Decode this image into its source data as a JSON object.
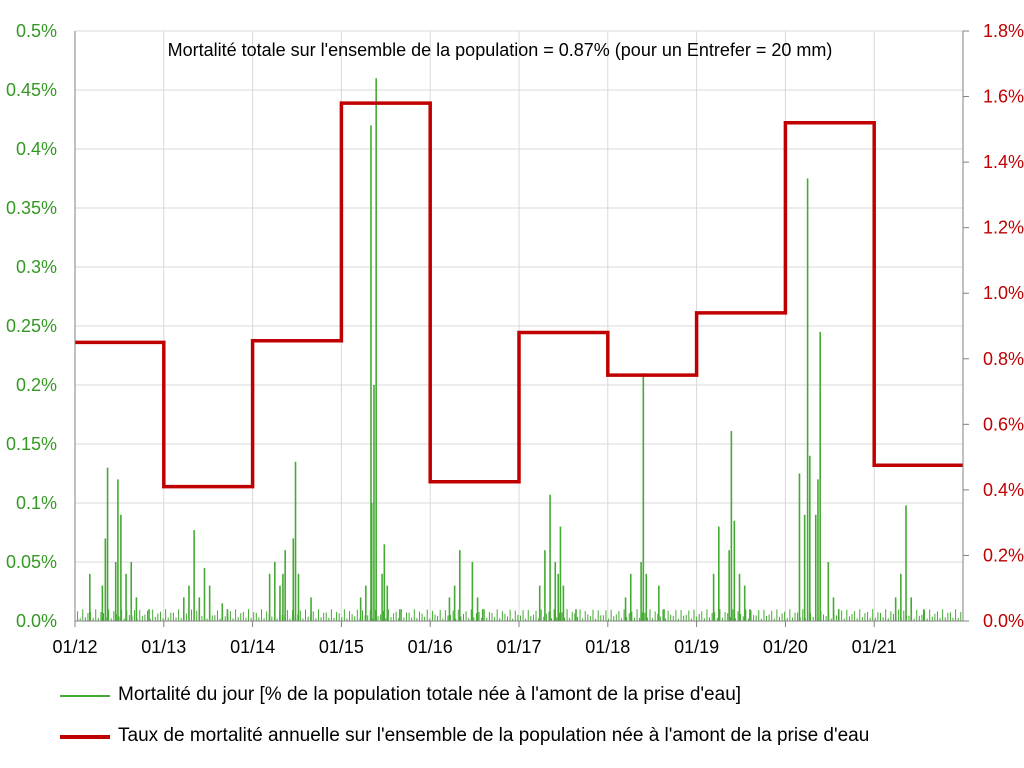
{
  "chart_data": {
    "type": "line",
    "title": "Mortalité totale sur l'ensemble de la population = 0.87% (pour un Entrefer = 20 mm)",
    "x_ticks": [
      "01/12",
      "01/13",
      "01/14",
      "01/15",
      "01/16",
      "01/17",
      "01/18",
      "01/19",
      "01/20",
      "01/21"
    ],
    "x_range": [
      "01/12",
      "12/21"
    ],
    "grid": true,
    "legend_position": "bottom",
    "colors": {
      "daily": "#44aa33",
      "annual": "#c00000",
      "left_axis": "#339922",
      "right_axis": "#c00000"
    },
    "left_axis": {
      "ylim": [
        0,
        0.5
      ],
      "unit": "%",
      "tick_labels": [
        "0.0%",
        "0.05%",
        "0.1%",
        "0.15%",
        "0.2%",
        "0.25%",
        "0.3%",
        "0.35%",
        "0.4%",
        "0.45%",
        "0.5%"
      ]
    },
    "right_axis": {
      "ylim": [
        0,
        1.8
      ],
      "unit": "%",
      "tick_labels": [
        "0.0%",
        "0.2%",
        "0.4%",
        "0.6%",
        "0.8%",
        "1.0%",
        "1.2%",
        "1.4%",
        "1.6%",
        "1.8%"
      ]
    },
    "series": [
      {
        "name": "Mortalité du jour [% de la population totale née à l'amont de la prise d'eau]",
        "axis": "left",
        "style": "spikes",
        "x": [
          "03/12",
          "04/12",
          "05/12",
          "05/12",
          "06/12",
          "06/12",
          "07/12",
          "07/12",
          "08/12",
          "09/12",
          "11/12",
          "03/13",
          "04/13",
          "05/13",
          "05/13",
          "06/13",
          "07/13",
          "08/13",
          "09/13",
          "03/14",
          "04/14",
          "04/14",
          "05/14",
          "05/14",
          "06/14",
          "06/14",
          "07/14",
          "08/14",
          "03/15",
          "04/15",
          "05/15",
          "05/15",
          "05/15",
          "05/15",
          "06/15",
          "06/15",
          "07/15",
          "08/15",
          "03/16",
          "04/16",
          "05/16",
          "06/16",
          "07/16",
          "08/16",
          "03/17",
          "04/17",
          "05/17",
          "05/17",
          "06/17",
          "06/17",
          "07/17",
          "08/17",
          "03/18",
          "04/18",
          "05/18",
          "05/18",
          "06/18",
          "07/18",
          "08/18",
          "03/19",
          "04/19",
          "05/19",
          "05/19",
          "06/19",
          "06/19",
          "07/19",
          "08/19",
          "02/20",
          "03/20",
          "04/20",
          "04/20",
          "05/20",
          "05/20",
          "05/20",
          "06/20",
          "07/20",
          "08/20",
          "03/21",
          "04/21",
          "05/21",
          "06/21",
          "07/21"
        ],
        "y": [
          0.04,
          0.03,
          0.13,
          0.07,
          0.12,
          0.05,
          0.09,
          0.04,
          0.05,
          0.02,
          0.01,
          0.02,
          0.03,
          0.077,
          0.02,
          0.045,
          0.03,
          0.015,
          0.01,
          0.04,
          0.05,
          0.03,
          0.06,
          0.04,
          0.135,
          0.07,
          0.04,
          0.02,
          0.02,
          0.03,
          0.42,
          0.46,
          0.2,
          0.1,
          0.065,
          0.04,
          0.03,
          0.01,
          0.02,
          0.03,
          0.06,
          0.05,
          0.02,
          0.01,
          0.03,
          0.06,
          0.107,
          0.05,
          0.08,
          0.04,
          0.03,
          0.01,
          0.02,
          0.04,
          0.21,
          0.05,
          0.04,
          0.03,
          0.01,
          0.04,
          0.08,
          0.161,
          0.06,
          0.085,
          0.04,
          0.03,
          0.01,
          0.125,
          0.09,
          0.14,
          0.375,
          0.245,
          0.12,
          0.09,
          0.05,
          0.02,
          0.01,
          0.02,
          0.04,
          0.098,
          0.02,
          0.01
        ]
      },
      {
        "name": "Taux de mortalité annuelle sur l'ensemble de la population née à l'amont de la prise d'eau",
        "axis": "right",
        "style": "step",
        "x": [
          "01/12",
          "01/13",
          "01/14",
          "01/15",
          "01/16",
          "01/17",
          "01/18",
          "01/19",
          "01/20",
          "01/21",
          "12/21"
        ],
        "y": [
          0.85,
          0.41,
          0.855,
          1.58,
          0.425,
          0.88,
          0.75,
          0.94,
          1.52,
          0.475,
          0.475
        ]
      }
    ]
  }
}
